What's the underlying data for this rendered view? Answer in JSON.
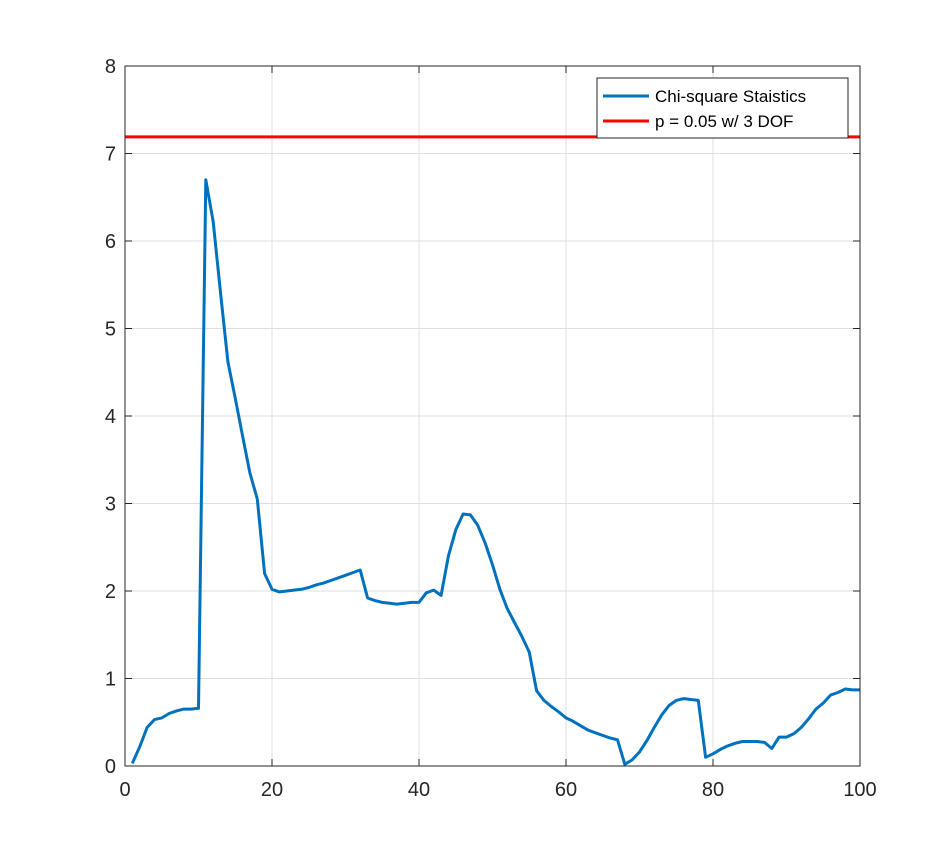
{
  "chart_data": {
    "type": "line",
    "title": "",
    "xlabel": "",
    "ylabel": "",
    "xlim": [
      0,
      100
    ],
    "ylim": [
      0,
      8
    ],
    "xticks": [
      0,
      20,
      40,
      60,
      80,
      100
    ],
    "yticks": [
      0,
      1,
      2,
      3,
      4,
      5,
      6,
      7,
      8
    ],
    "grid": true,
    "legend_position": "top-right",
    "series": [
      {
        "name": "Chi-square Staistics",
        "color": "#0072BD",
        "x": [
          1,
          2,
          3,
          4,
          5,
          6,
          7,
          8,
          9,
          10,
          11,
          12,
          13,
          14,
          15,
          16,
          17,
          18,
          19,
          20,
          21,
          22,
          23,
          24,
          25,
          26,
          27,
          28,
          29,
          30,
          31,
          32,
          33,
          34,
          35,
          36,
          37,
          38,
          39,
          40,
          41,
          42,
          43,
          44,
          45,
          46,
          47,
          48,
          49,
          50,
          51,
          52,
          53,
          54,
          55,
          56,
          57,
          58,
          59,
          60,
          61,
          62,
          63,
          64,
          65,
          66,
          67,
          68,
          69,
          70,
          71,
          72,
          73,
          74,
          75,
          76,
          77,
          78,
          79,
          80,
          81,
          82,
          83,
          84,
          85,
          86,
          87,
          88,
          89,
          90,
          91,
          92,
          93,
          94,
          95,
          96,
          97,
          98,
          99,
          100
        ],
        "y": [
          0.03,
          0.22,
          0.44,
          0.53,
          0.55,
          0.6,
          0.63,
          0.65,
          0.65,
          0.66,
          6.7,
          6.22,
          5.4,
          4.62,
          4.2,
          3.77,
          3.35,
          3.05,
          2.2,
          2.02,
          1.99,
          2.0,
          2.01,
          2.02,
          2.04,
          2.07,
          2.09,
          2.12,
          2.15,
          2.18,
          2.21,
          2.24,
          1.92,
          1.89,
          1.87,
          1.86,
          1.85,
          1.86,
          1.87,
          1.87,
          1.98,
          2.01,
          1.95,
          2.4,
          2.7,
          2.88,
          2.87,
          2.75,
          2.55,
          2.3,
          2.02,
          1.8,
          1.64,
          1.48,
          1.3,
          0.86,
          0.75,
          0.68,
          0.62,
          0.55,
          0.51,
          0.46,
          0.41,
          0.38,
          0.35,
          0.32,
          0.3,
          0.02,
          0.07,
          0.16,
          0.29,
          0.44,
          0.58,
          0.69,
          0.75,
          0.77,
          0.76,
          0.75,
          0.1,
          0.14,
          0.19,
          0.23,
          0.26,
          0.28,
          0.28,
          0.28,
          0.27,
          0.2,
          0.33,
          0.33,
          0.37,
          0.44,
          0.54,
          0.65,
          0.72,
          0.81,
          0.84,
          0.88,
          0.87,
          0.87
        ]
      },
      {
        "name": "p = 0.05 w/ 3 DOF",
        "color": "#FF0000",
        "x": [
          0,
          100
        ],
        "y": [
          7.19,
          7.19
        ]
      }
    ]
  }
}
